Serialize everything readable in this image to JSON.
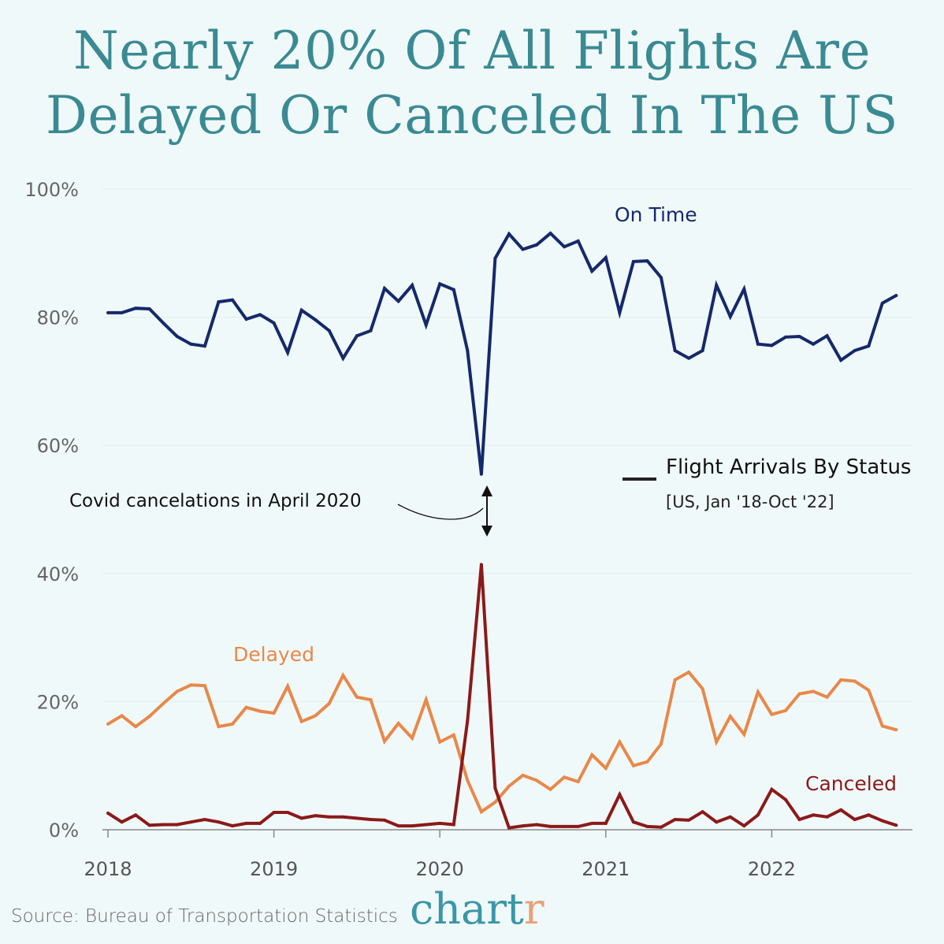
{
  "title_line1": "Nearly 20% Of All Flights Are",
  "title_line2": "Delayed Or Canceled In The US",
  "footer": {
    "source": "Source: Bureau of Transportation Statistics",
    "logo": "chartr"
  },
  "chart_data": {
    "type": "line",
    "legend_title": "Flight Arrivals By Status",
    "legend_subtitle": "[US, Jan '18-Oct '22]",
    "annotation": "Covid cancelations in April 2020",
    "x_start": "2018-01",
    "x_end": "2022-10",
    "x_ticks": [
      "2018",
      "2019",
      "2020",
      "2021",
      "2022"
    ],
    "y_ticks": [
      "0%",
      "20%",
      "40%",
      "60%",
      "80%",
      "100%"
    ],
    "ylim": [
      0,
      100
    ],
    "grid": true,
    "colors": {
      "on_time": "#15296b",
      "delayed": "#e8884a",
      "canceled": "#8b1a1a",
      "title": "#3a8a93",
      "background": "#f0f9f9"
    },
    "series": [
      {
        "name": "On Time",
        "key": "on_time",
        "values": [
          80.7,
          80.7,
          81.4,
          81.3,
          79.1,
          77.0,
          75.8,
          75.5,
          82.4,
          82.7,
          79.7,
          80.4,
          79.1,
          74.5,
          81.1,
          79.6,
          77.9,
          73.6,
          77.1,
          77.9,
          84.5,
          82.5,
          85.0,
          78.8,
          85.2,
          84.3,
          74.8,
          55.5,
          89.2,
          93.0,
          90.6,
          91.3,
          93.1,
          91.0,
          91.9,
          87.2,
          89.3,
          80.7,
          88.7,
          88.8,
          86.2,
          74.8,
          73.6,
          74.8,
          85.0,
          80.1,
          84.4,
          75.8,
          75.6,
          76.9,
          77.0,
          75.8,
          77.1,
          73.3,
          74.8,
          75.5,
          82.2,
          83.4
        ]
      },
      {
        "name": "Delayed",
        "key": "delayed",
        "values": [
          16.5,
          17.8,
          16.1,
          17.7,
          19.7,
          21.6,
          22.6,
          22.5,
          16.1,
          16.5,
          19.1,
          18.5,
          18.2,
          22.4,
          16.9,
          17.8,
          19.7,
          24.1,
          20.7,
          20.3,
          13.8,
          16.6,
          14.3,
          20.3,
          13.7,
          14.8,
          7.7,
          2.8,
          4.3,
          6.8,
          8.5,
          7.7,
          6.3,
          8.2,
          7.5,
          11.7,
          9.6,
          13.7,
          10.0,
          10.6,
          13.4,
          23.4,
          24.6,
          22.0,
          13.7,
          17.7,
          14.9,
          21.5,
          18.0,
          18.6,
          21.2,
          21.6,
          20.7,
          23.4,
          23.2,
          21.8,
          16.2,
          15.6
        ]
      },
      {
        "name": "Canceled",
        "key": "canceled",
        "values": [
          2.6,
          1.2,
          2.3,
          0.7,
          0.8,
          0.8,
          1.2,
          1.6,
          1.2,
          0.6,
          1.0,
          1.0,
          2.7,
          2.7,
          1.8,
          2.2,
          2.0,
          2.0,
          1.8,
          1.6,
          1.5,
          0.6,
          0.6,
          0.8,
          1.0,
          0.8,
          17.0,
          41.4,
          6.5,
          0.3,
          0.6,
          0.8,
          0.5,
          0.5,
          0.5,
          1.0,
          1.0,
          5.5,
          1.2,
          0.5,
          0.4,
          1.6,
          1.5,
          2.8,
          1.2,
          2.0,
          0.6,
          2.3,
          6.3,
          4.7,
          1.6,
          2.3,
          2.0,
          3.1,
          1.6,
          2.3,
          1.4,
          0.7
        ]
      }
    ]
  }
}
